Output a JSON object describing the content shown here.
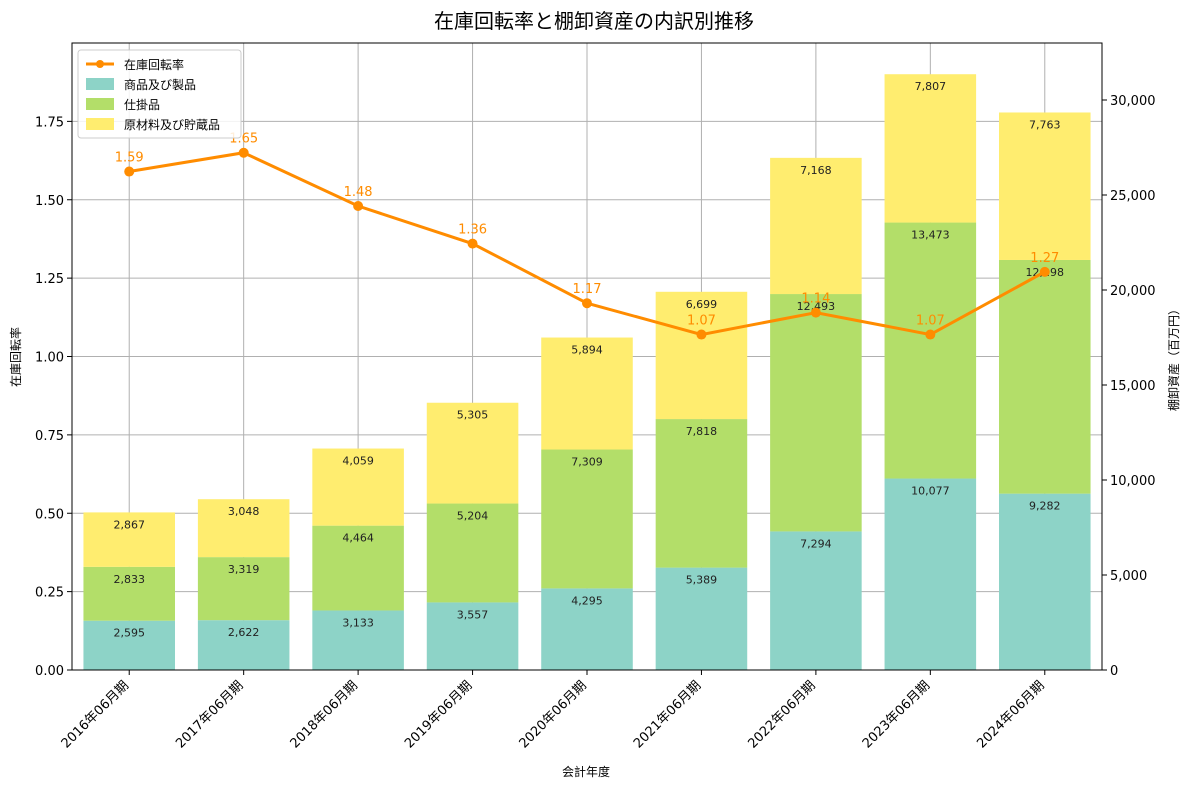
{
  "chart_data": {
    "type": "bar",
    "stacked": true,
    "title": "在庫回転率と棚卸資産の内訳別推移",
    "xlabel": "会計年度",
    "ylabel_left": "在庫回転率",
    "ylabel_right": "棚卸資産（百万円）",
    "ylim_left": [
      0,
      2.0
    ],
    "ylim_right": [
      0,
      33000
    ],
    "left_ticks": [
      "0.00",
      "0.25",
      "0.50",
      "0.75",
      "1.00",
      "1.25",
      "1.50",
      "1.75"
    ],
    "left_tick_values": [
      0,
      0.25,
      0.5,
      0.75,
      1.0,
      1.25,
      1.5,
      1.75
    ],
    "right_ticks": [
      "0",
      "5,000",
      "10,000",
      "15,000",
      "20,000",
      "25,000",
      "30,000"
    ],
    "right_tick_values": [
      0,
      5000,
      10000,
      15000,
      20000,
      25000,
      30000
    ],
    "grid": true,
    "legend_position": "top-left",
    "categories": [
      "2016年06月期",
      "2017年06月期",
      "2018年06月期",
      "2019年06月期",
      "2020年06月期",
      "2021年06月期",
      "2022年06月期",
      "2023年06月期",
      "2024年06月期"
    ],
    "series": [
      {
        "name": "商品及び製品",
        "color": "#8dd3c7",
        "values": [
          2595,
          2622,
          3133,
          3557,
          4295,
          5389,
          7294,
          10077,
          9282
        ],
        "labels": [
          "2,595",
          "2,622",
          "3,133",
          "3,557",
          "4,295",
          "5,389",
          "7,294",
          "10,077",
          "9,282"
        ]
      },
      {
        "name": "仕掛品",
        "color": "#b3de69",
        "values": [
          2833,
          3319,
          4464,
          5204,
          7309,
          7818,
          12493,
          13473,
          12298
        ],
        "labels": [
          "2,833",
          "3,319",
          "4,464",
          "5,204",
          "7,309",
          "7,818",
          "12,493",
          "13,473",
          "12,298"
        ]
      },
      {
        "name": "原材料及び貯蔵品",
        "color": "#ffed6f",
        "values": [
          2867,
          3048,
          4059,
          5305,
          5894,
          6699,
          7168,
          7807,
          7763
        ],
        "labels": [
          "2,867",
          "3,048",
          "4,059",
          "5,305",
          "5,894",
          "6,699",
          "7,168",
          "7,807",
          "7,763"
        ]
      }
    ],
    "line": {
      "name": "在庫回転率",
      "color": "#ff8c00",
      "values": [
        1.59,
        1.65,
        1.48,
        1.36,
        1.17,
        1.07,
        1.14,
        1.07,
        1.27
      ],
      "labels": [
        "1.59",
        "1.65",
        "1.48",
        "1.36",
        "1.17",
        "1.07",
        "1.14",
        "1.07",
        "1.27"
      ]
    }
  }
}
